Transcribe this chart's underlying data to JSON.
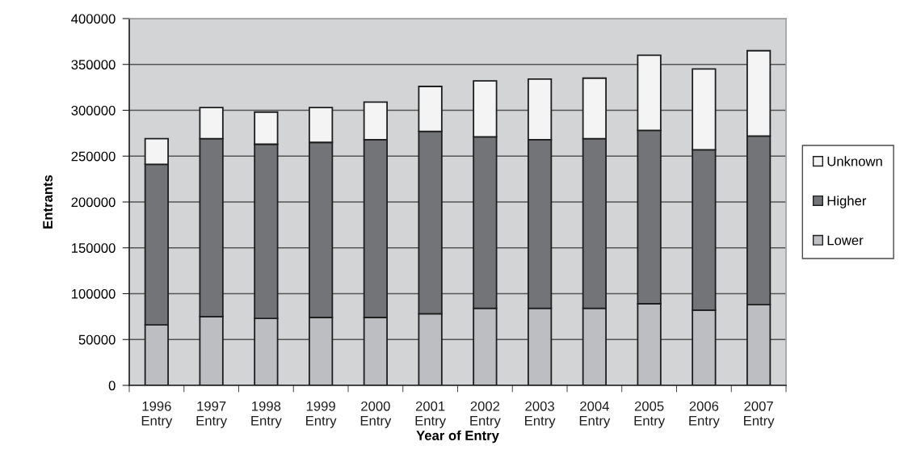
{
  "chart_data": {
    "type": "bar",
    "stacked": true,
    "xlabel": "Year of Entry",
    "ylabel": "Entrants",
    "categories": [
      "1996\nEntry",
      "1997\nEntry",
      "1998\nEntry",
      "1999\nEntry",
      "2000\nEntry",
      "2001\nEntry",
      "2002\nEntry",
      "2003\nEntry",
      "2004\nEntry",
      "2005\nEntry",
      "2006\nEntry",
      "2007\nEntry"
    ],
    "series": [
      {
        "name": "Lower",
        "color": "#bdbec2",
        "values": [
          66000,
          75000,
          73000,
          74000,
          74000,
          78000,
          84000,
          84000,
          84000,
          89000,
          82000,
          88000
        ]
      },
      {
        "name": "Higher",
        "color": "#737478",
        "values": [
          175000,
          194000,
          190000,
          191000,
          194000,
          199000,
          187000,
          184000,
          185000,
          189000,
          175000,
          184000
        ]
      },
      {
        "name": "Unknown",
        "color": "#f4f4f4",
        "values": [
          28000,
          34000,
          35000,
          38000,
          41000,
          49000,
          61000,
          66000,
          66000,
          82000,
          88000,
          93000
        ]
      }
    ],
    "ylim": [
      0,
      400000
    ],
    "yticks": [
      0,
      50000,
      100000,
      150000,
      200000,
      250000,
      300000,
      350000,
      400000
    ],
    "grid": "y",
    "legend": "right"
  }
}
